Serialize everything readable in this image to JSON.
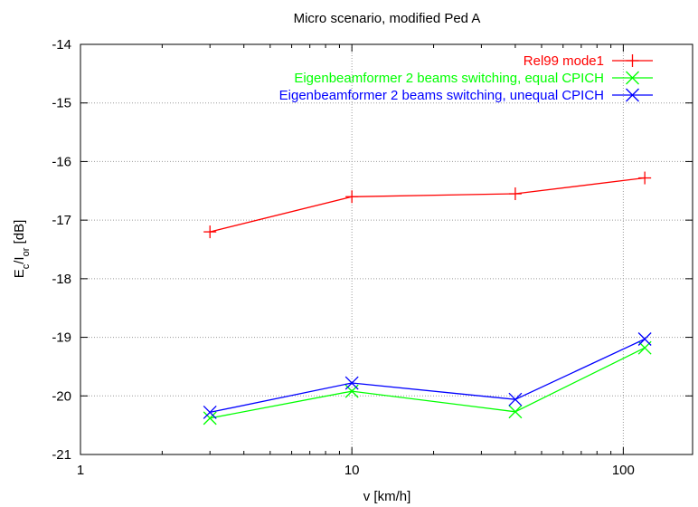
{
  "chart_data": {
    "type": "line",
    "title": "Micro scenario, modified Ped A",
    "xlabel": "v [km/h]",
    "ylabel": {
      "E": "E",
      "sub1": "c",
      "slash": "/I",
      "sub2": "or",
      "unit": " [dB]"
    },
    "xscale": "log",
    "xlim": [
      1,
      180
    ],
    "ylim": [
      -21,
      -14
    ],
    "xticks": [
      1,
      10,
      100
    ],
    "xtick_labels": [
      "1",
      "10",
      "100"
    ],
    "yticks": [
      -21,
      -20,
      -19,
      -18,
      -17,
      -16,
      -15,
      -14
    ],
    "ytick_labels": [
      "-21",
      "-20",
      "-19",
      "-18",
      "-17",
      "-16",
      "-15",
      "-14"
    ],
    "grid": "dotted, both axes",
    "legend_position": "top-right",
    "series": [
      {
        "name": "Rel99 mode1",
        "color": "#ff0000",
        "marker": "plus",
        "x": [
          3,
          10,
          40,
          120
        ],
        "y": [
          -17.2,
          -16.6,
          -16.55,
          -16.28
        ]
      },
      {
        "name": "Eigenbeamformer 2 beams switching, equal CPICH",
        "color": "#00ff00",
        "marker": "cross",
        "x": [
          3,
          10,
          40,
          120
        ],
        "y": [
          -20.38,
          -19.92,
          -20.27,
          -19.18
        ]
      },
      {
        "name": "Eigenbeamformer 2 beams switching, unequal CPICH",
        "color": "#0000ff",
        "marker": "cross",
        "x": [
          3,
          10,
          40,
          120
        ],
        "y": [
          -20.28,
          -19.78,
          -20.06,
          -19.03
        ]
      }
    ]
  }
}
